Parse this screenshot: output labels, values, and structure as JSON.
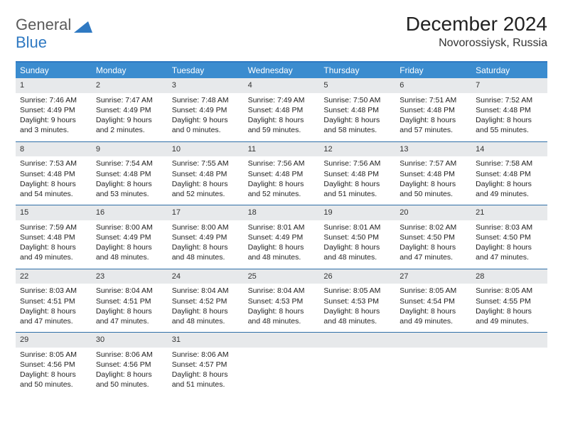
{
  "brand": {
    "word1": "General",
    "word2": "Blue"
  },
  "title": "December 2024",
  "location": "Novorossiysk, Russia",
  "colors": {
    "header_bg": "#3b8ccf",
    "header_border": "#2f79c2",
    "row_border": "#2f6fa8",
    "daynum_bg": "#e7e9eb",
    "logo_blue": "#2f79c2",
    "logo_gray": "#5a5a5a"
  },
  "day_headers": [
    "Sunday",
    "Monday",
    "Tuesday",
    "Wednesday",
    "Thursday",
    "Friday",
    "Saturday"
  ],
  "weeks": [
    [
      {
        "n": "1",
        "sr": "7:46 AM",
        "ss": "4:49 PM",
        "dl": "9 hours and 3 minutes."
      },
      {
        "n": "2",
        "sr": "7:47 AM",
        "ss": "4:49 PM",
        "dl": "9 hours and 2 minutes."
      },
      {
        "n": "3",
        "sr": "7:48 AM",
        "ss": "4:49 PM",
        "dl": "9 hours and 0 minutes."
      },
      {
        "n": "4",
        "sr": "7:49 AM",
        "ss": "4:48 PM",
        "dl": "8 hours and 59 minutes."
      },
      {
        "n": "5",
        "sr": "7:50 AM",
        "ss": "4:48 PM",
        "dl": "8 hours and 58 minutes."
      },
      {
        "n": "6",
        "sr": "7:51 AM",
        "ss": "4:48 PM",
        "dl": "8 hours and 57 minutes."
      },
      {
        "n": "7",
        "sr": "7:52 AM",
        "ss": "4:48 PM",
        "dl": "8 hours and 55 minutes."
      }
    ],
    [
      {
        "n": "8",
        "sr": "7:53 AM",
        "ss": "4:48 PM",
        "dl": "8 hours and 54 minutes."
      },
      {
        "n": "9",
        "sr": "7:54 AM",
        "ss": "4:48 PM",
        "dl": "8 hours and 53 minutes."
      },
      {
        "n": "10",
        "sr": "7:55 AM",
        "ss": "4:48 PM",
        "dl": "8 hours and 52 minutes."
      },
      {
        "n": "11",
        "sr": "7:56 AM",
        "ss": "4:48 PM",
        "dl": "8 hours and 52 minutes."
      },
      {
        "n": "12",
        "sr": "7:56 AM",
        "ss": "4:48 PM",
        "dl": "8 hours and 51 minutes."
      },
      {
        "n": "13",
        "sr": "7:57 AM",
        "ss": "4:48 PM",
        "dl": "8 hours and 50 minutes."
      },
      {
        "n": "14",
        "sr": "7:58 AM",
        "ss": "4:48 PM",
        "dl": "8 hours and 49 minutes."
      }
    ],
    [
      {
        "n": "15",
        "sr": "7:59 AM",
        "ss": "4:48 PM",
        "dl": "8 hours and 49 minutes."
      },
      {
        "n": "16",
        "sr": "8:00 AM",
        "ss": "4:49 PM",
        "dl": "8 hours and 48 minutes."
      },
      {
        "n": "17",
        "sr": "8:00 AM",
        "ss": "4:49 PM",
        "dl": "8 hours and 48 minutes."
      },
      {
        "n": "18",
        "sr": "8:01 AM",
        "ss": "4:49 PM",
        "dl": "8 hours and 48 minutes."
      },
      {
        "n": "19",
        "sr": "8:01 AM",
        "ss": "4:50 PM",
        "dl": "8 hours and 48 minutes."
      },
      {
        "n": "20",
        "sr": "8:02 AM",
        "ss": "4:50 PM",
        "dl": "8 hours and 47 minutes."
      },
      {
        "n": "21",
        "sr": "8:03 AM",
        "ss": "4:50 PM",
        "dl": "8 hours and 47 minutes."
      }
    ],
    [
      {
        "n": "22",
        "sr": "8:03 AM",
        "ss": "4:51 PM",
        "dl": "8 hours and 47 minutes."
      },
      {
        "n": "23",
        "sr": "8:04 AM",
        "ss": "4:51 PM",
        "dl": "8 hours and 47 minutes."
      },
      {
        "n": "24",
        "sr": "8:04 AM",
        "ss": "4:52 PM",
        "dl": "8 hours and 48 minutes."
      },
      {
        "n": "25",
        "sr": "8:04 AM",
        "ss": "4:53 PM",
        "dl": "8 hours and 48 minutes."
      },
      {
        "n": "26",
        "sr": "8:05 AM",
        "ss": "4:53 PM",
        "dl": "8 hours and 48 minutes."
      },
      {
        "n": "27",
        "sr": "8:05 AM",
        "ss": "4:54 PM",
        "dl": "8 hours and 49 minutes."
      },
      {
        "n": "28",
        "sr": "8:05 AM",
        "ss": "4:55 PM",
        "dl": "8 hours and 49 minutes."
      }
    ],
    [
      {
        "n": "29",
        "sr": "8:05 AM",
        "ss": "4:56 PM",
        "dl": "8 hours and 50 minutes."
      },
      {
        "n": "30",
        "sr": "8:06 AM",
        "ss": "4:56 PM",
        "dl": "8 hours and 50 minutes."
      },
      {
        "n": "31",
        "sr": "8:06 AM",
        "ss": "4:57 PM",
        "dl": "8 hours and 51 minutes."
      },
      null,
      null,
      null,
      null
    ]
  ],
  "labels": {
    "sunrise": "Sunrise:",
    "sunset": "Sunset:",
    "daylight": "Daylight:"
  }
}
